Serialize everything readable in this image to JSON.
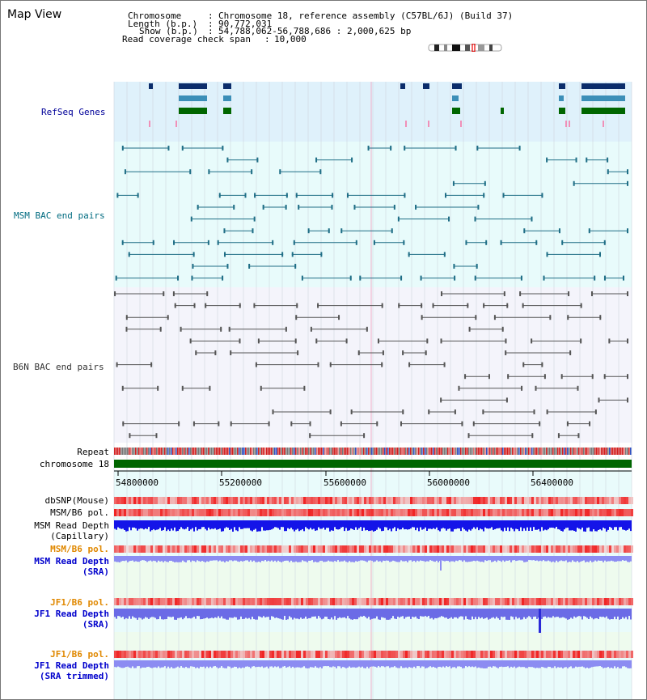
{
  "view": {
    "title": "Map View",
    "info": {
      "chromosome_key": "Chromosome",
      "chromosome_value": "Chromosome 18, reference assembly (C57BL/6J) (Build 37)",
      "length_key": "Length (b.p.)",
      "length_value": "90,772,031",
      "show_key": "Show (b.p.)",
      "show_value": "54,788,062-56,788,686 : 2,000,625 bp",
      "span_key": "Read coverage check span",
      "span_value": "10,000"
    }
  },
  "tracks": {
    "refseq": "RefSeq Genes",
    "msm_bac": "MSM BAC end pairs",
    "b6n_bac": "B6N BAC end pairs",
    "repeat": "Repeat",
    "chromosome": "chromosome 18",
    "dbsnp": "dbSNP(Mouse)",
    "msm_b6_pol": "MSM/B6 pol.",
    "msm_depth_cap_1": "MSM Read Depth",
    "msm_depth_cap_2": "(Capillary)",
    "msm_b6_pol_sra": "MSM/B6 pol.",
    "msm_depth_sra_1": "MSM Read Depth",
    "msm_depth_sra_2": "(SRA)",
    "jf1_b6_pol_1": "JF1/B6 pol.",
    "jf1_depth_sra_1": "JF1 Read Depth",
    "jf1_depth_sra_2": "(SRA)",
    "jf1_b6_pol_2": "JF1/B6 pol.",
    "jf1_depth_trim_1": "JF1 Read Depth",
    "jf1_depth_trim_2": "(SRA trimmed)"
  },
  "axis": {
    "ticks": [
      "54800000",
      "55200000",
      "55600000",
      "56000000",
      "56400000"
    ]
  },
  "colors": {
    "refseq_bg": "#dff1fb",
    "msm_bg": "#e8fbfb",
    "b6n_bg": "#f4f4fb",
    "lower_bg": "#e9fbfb",
    "grid": "#cfd6e0",
    "chromosome": "#006600",
    "refseq_label": "#000099",
    "msm_label": "#006b80",
    "b6n_label": "#333333",
    "pol_label_orange": "#e08800",
    "depth_label_blue": "#0000cc"
  }
}
